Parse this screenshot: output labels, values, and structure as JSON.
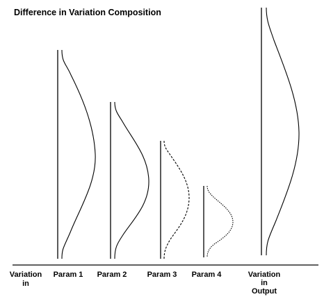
{
  "title": "Difference in Variation Composition",
  "left_label": [
    "Variation",
    "in"
  ],
  "columns": [
    {
      "label": "Param 1",
      "style": "solid"
    },
    {
      "label": "Param 2",
      "style": "solid"
    },
    {
      "label": "Param 3",
      "style": "dashed"
    },
    {
      "label": "Param 4",
      "style": "dotted"
    }
  ],
  "output_label": [
    "Variation",
    "in",
    "Output"
  ]
}
